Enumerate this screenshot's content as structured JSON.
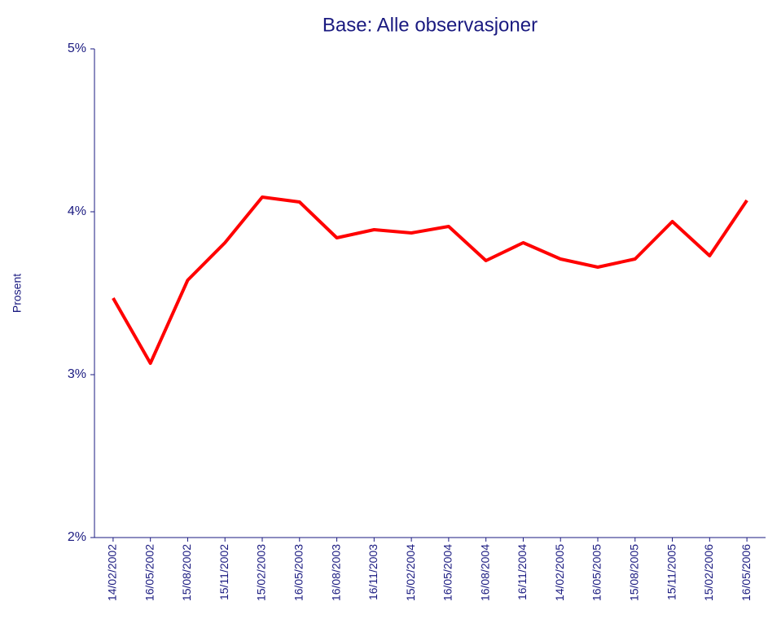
{
  "chart_data": {
    "type": "line",
    "title": "Base: Alle observasjoner",
    "y_label": "Prosent",
    "categories": [
      "14/02/2002",
      "16/05/2002",
      "15/08/2002",
      "15/11/2002",
      "15/02/2003",
      "16/05/2003",
      "16/08/2003",
      "16/11/2003",
      "15/02/2004",
      "16/05/2004",
      "16/08/2004",
      "16/11/2004",
      "14/02/2005",
      "16/05/2005",
      "15/08/2005",
      "15/11/2005",
      "15/02/2006",
      "16/05/2006"
    ],
    "values": [
      3.47,
      3.07,
      3.58,
      3.81,
      4.09,
      4.06,
      3.84,
      3.89,
      3.87,
      3.91,
      3.7,
      3.81,
      3.71,
      3.66,
      3.71,
      3.94,
      3.73,
      4.07
    ],
    "color": "#ff0000",
    "ylim": [
      2,
      5
    ],
    "yticks": [
      {
        "value": 2,
        "label": "2%"
      },
      {
        "value": 3,
        "label": "3%"
      },
      {
        "value": 4,
        "label": "4%"
      },
      {
        "value": 5,
        "label": "5%"
      }
    ],
    "grid": false
  }
}
